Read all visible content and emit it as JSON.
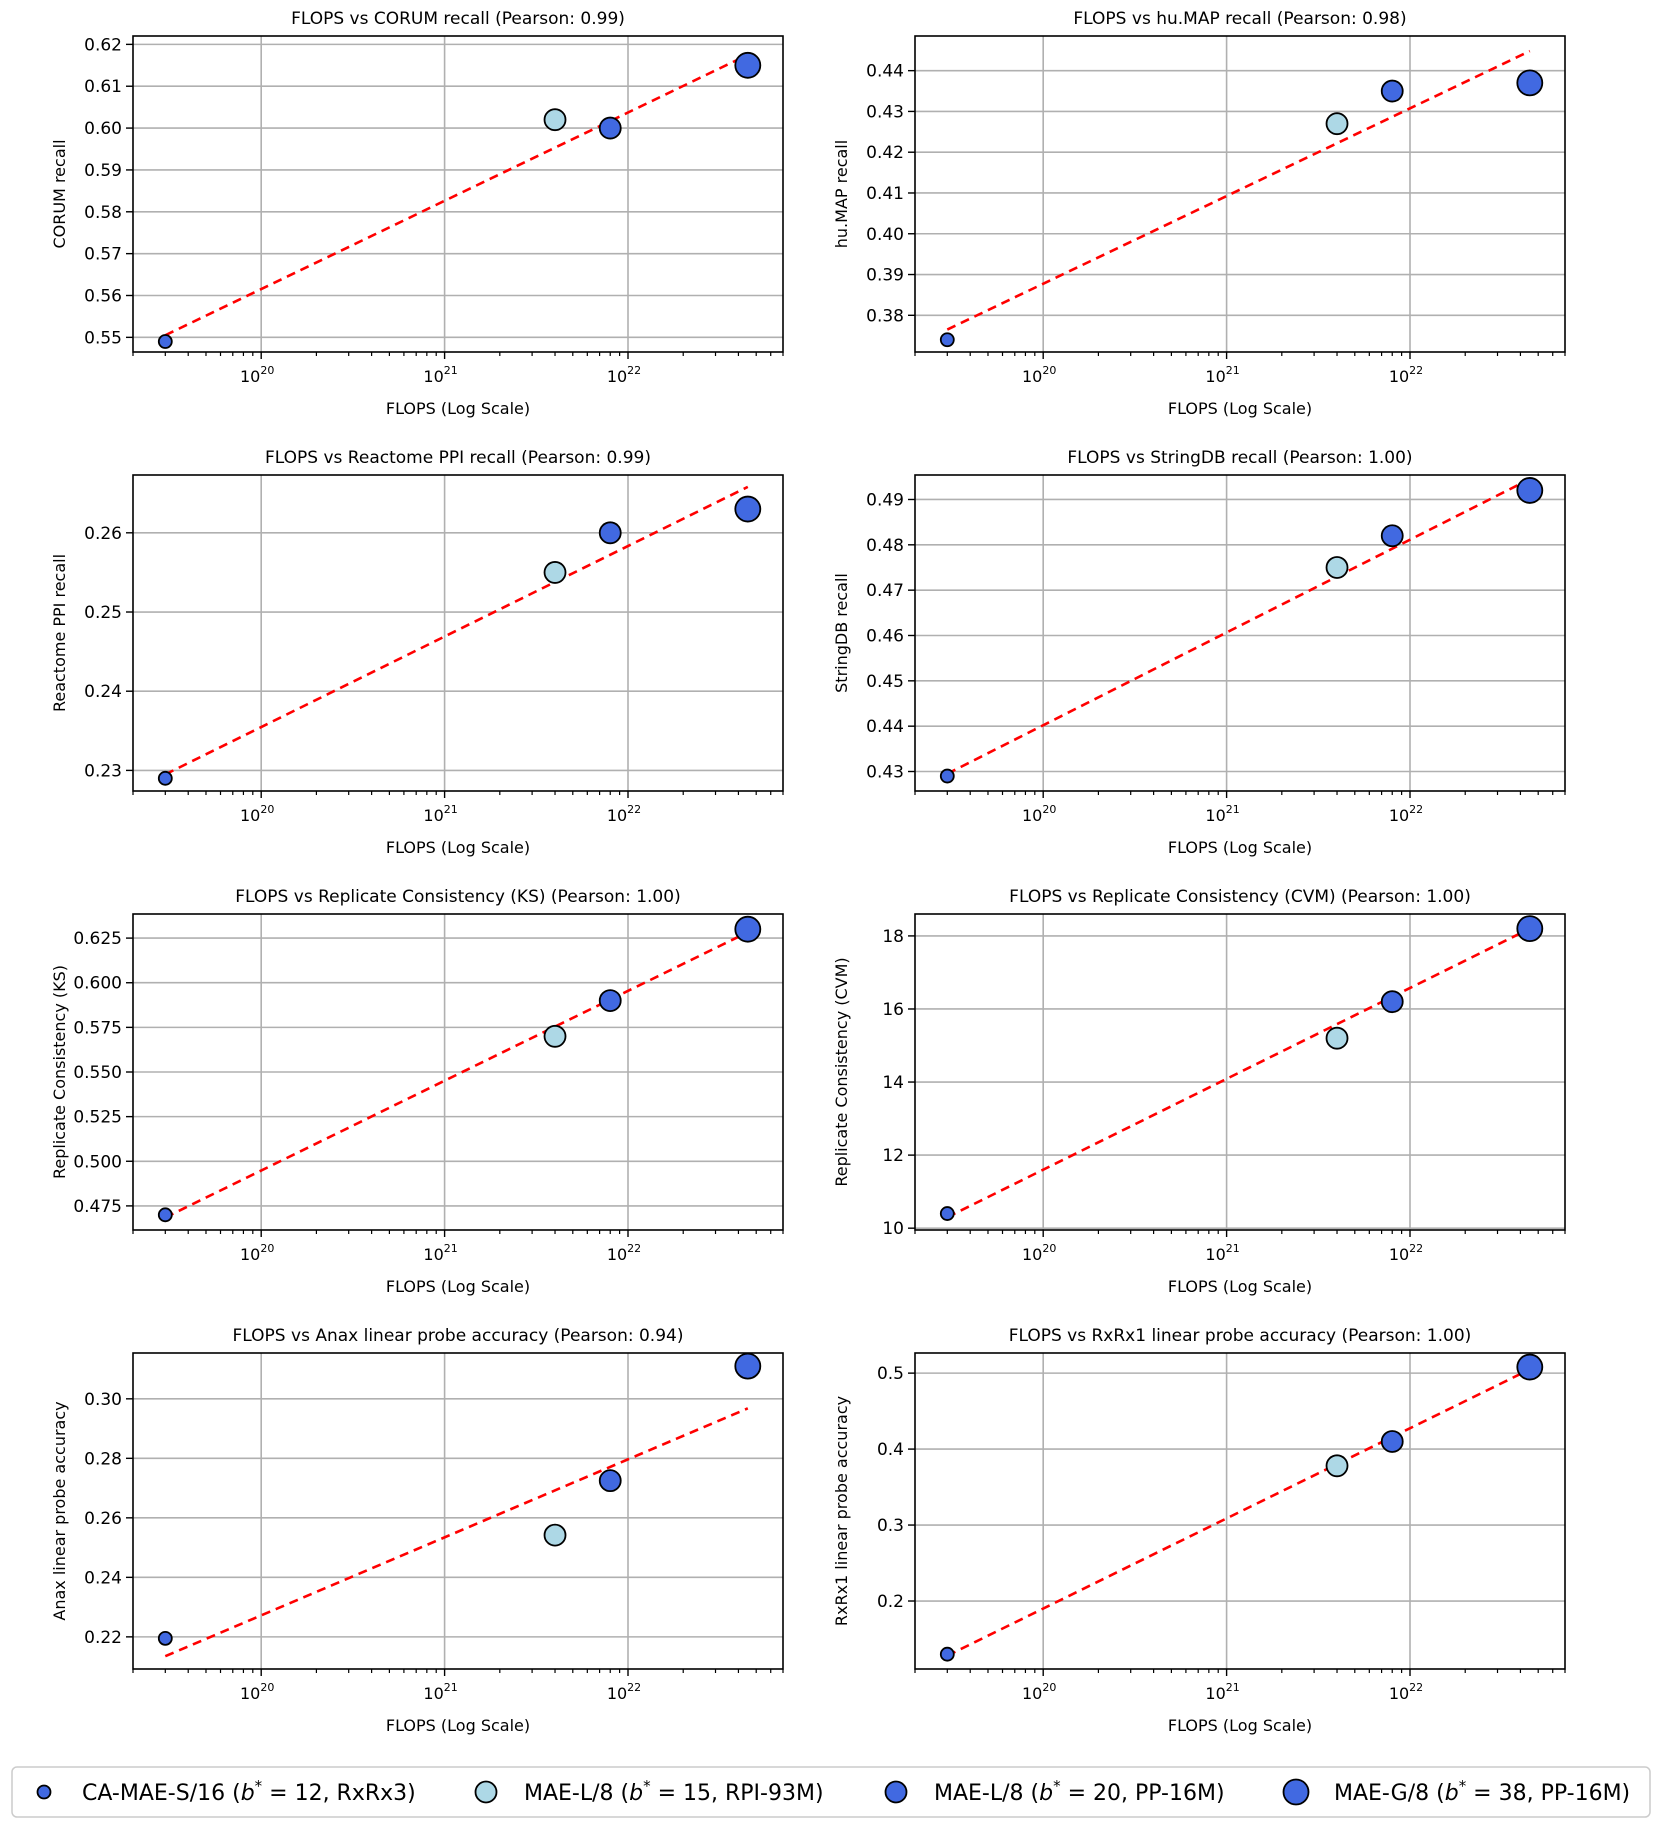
{
  "figure": {
    "xlabel": "FLOPS (Log Scale)",
    "x_tick_base": "10",
    "x_tick_exponents": [
      "20",
      "21",
      "22"
    ],
    "fit_line_color": "#ff0000",
    "point_edge_color": "#000000"
  },
  "models": [
    {
      "name": "CA-MAE-S/16",
      "b_star": 12,
      "dataset": "RxRx3",
      "color": "#4169e1",
      "size": "small"
    },
    {
      "name": "MAE-L/8",
      "b_star": 15,
      "dataset": "RPI-93M",
      "color": "#add8e6",
      "size": "medium"
    },
    {
      "name": "MAE-L/8",
      "b_star": 20,
      "dataset": "PP-16M",
      "color": "#4169e1",
      "size": "medium"
    },
    {
      "name": "MAE-G/8",
      "b_star": 38,
      "dataset": "PP-16M",
      "color": "#4169e1",
      "size": "large"
    }
  ],
  "legend": {
    "items": [
      {
        "prefix": "CA-MAE-S/16 (",
        "math": "b",
        "sup": "*",
        "suffix": " = 12, RxRx3)"
      },
      {
        "prefix": "MAE-L/8 (",
        "math": "b",
        "sup": "*",
        "suffix": " = 15, RPI-93M)"
      },
      {
        "prefix": "MAE-L/8 (",
        "math": "b",
        "sup": "*",
        "suffix": " = 20, PP-16M)"
      },
      {
        "prefix": "MAE-G/8 (",
        "math": "b",
        "sup": "*",
        "suffix": " = 38, PP-16M)"
      }
    ]
  },
  "chart_data": [
    {
      "type": "scatter",
      "title": "FLOPS vs CORUM recall (Pearson: 0.99)",
      "xlabel": "FLOPS (Log Scale)",
      "ylabel": "CORUM recall",
      "x_scale": "log",
      "x": [
        3e+19,
        4e+21,
        8e+21,
        4.5e+22
      ],
      "y": [
        0.549,
        0.602,
        0.6,
        0.615
      ],
      "fit_line": [
        0.5505,
        0.6175
      ],
      "xlim": [
        2e+19,
        7e+22
      ],
      "ylim": [
        0.5465,
        0.622
      ],
      "yticks": [
        0.55,
        0.56,
        0.57,
        0.58,
        0.59,
        0.6,
        0.61,
        0.62
      ],
      "ytick_labels": [
        "0.55",
        "0.56",
        "0.57",
        "0.58",
        "0.59",
        "0.60",
        "0.61",
        "0.62"
      ],
      "grid": true
    },
    {
      "type": "scatter",
      "title": "FLOPS vs hu.MAP recall (Pearson: 0.98)",
      "xlabel": "FLOPS (Log Scale)",
      "ylabel": "hu.MAP recall",
      "x_scale": "log",
      "x": [
        3e+19,
        4e+21,
        8e+21,
        4.5e+22
      ],
      "y": [
        0.374,
        0.427,
        0.435,
        0.437
      ],
      "fit_line": [
        0.3765,
        0.4448
      ],
      "xlim": [
        2e+19,
        7e+22
      ],
      "ylim": [
        0.371,
        0.4485
      ],
      "yticks": [
        0.38,
        0.39,
        0.4,
        0.41,
        0.42,
        0.43,
        0.44
      ],
      "ytick_labels": [
        "0.38",
        "0.39",
        "0.40",
        "0.41",
        "0.42",
        "0.43",
        "0.44"
      ],
      "grid": true
    },
    {
      "type": "scatter",
      "title": "FLOPS vs Reactome PPI recall (Pearson: 0.99)",
      "xlabel": "FLOPS (Log Scale)",
      "ylabel": "Reactome PPI recall",
      "x_scale": "log",
      "x": [
        3e+19,
        4e+21,
        8e+21,
        4.5e+22
      ],
      "y": [
        0.229,
        0.255,
        0.26,
        0.263
      ],
      "fit_line": [
        0.2295,
        0.2658
      ],
      "xlim": [
        2e+19,
        7e+22
      ],
      "ylim": [
        0.2274,
        0.2673
      ],
      "yticks": [
        0.23,
        0.24,
        0.25,
        0.26
      ],
      "ytick_labels": [
        "0.23",
        "0.24",
        "0.25",
        "0.26"
      ],
      "grid": true
    },
    {
      "type": "scatter",
      "title": "FLOPS vs StringDB recall (Pearson: 1.00)",
      "xlabel": "FLOPS (Log Scale)",
      "ylabel": "StringDB recall",
      "x_scale": "log",
      "x": [
        3e+19,
        4e+21,
        8e+21,
        4.5e+22
      ],
      "y": [
        0.429,
        0.475,
        0.482,
        0.492
      ],
      "fit_line": [
        0.4295,
        0.4945
      ],
      "xlim": [
        2e+19,
        7e+22
      ],
      "ylim": [
        0.4257,
        0.4954
      ],
      "yticks": [
        0.43,
        0.44,
        0.45,
        0.46,
        0.47,
        0.48,
        0.49
      ],
      "ytick_labels": [
        "0.43",
        "0.44",
        "0.45",
        "0.46",
        "0.47",
        "0.48",
        "0.49"
      ],
      "grid": true
    },
    {
      "type": "scatter",
      "title": "FLOPS vs Replicate Consistency (KS) (Pearson: 1.00)",
      "xlabel": "FLOPS (Log Scale)",
      "ylabel": "Replicate Consistency (KS)",
      "x_scale": "log",
      "x": [
        3e+19,
        4e+21,
        8e+21,
        4.5e+22
      ],
      "y": [
        0.47,
        0.57,
        0.59,
        0.63
      ],
      "fit_line": [
        0.4685,
        0.6283
      ],
      "xlim": [
        2e+19,
        7e+22
      ],
      "ylim": [
        0.4615,
        0.6385
      ],
      "yticks": [
        0.475,
        0.5,
        0.525,
        0.55,
        0.575,
        0.6,
        0.625
      ],
      "ytick_labels": [
        "0.475",
        "0.500",
        "0.525",
        "0.550",
        "0.575",
        "0.600",
        "0.625"
      ],
      "grid": true
    },
    {
      "type": "scatter",
      "title": "FLOPS vs Replicate Consistency (CVM) (Pearson: 1.00)",
      "xlabel": "FLOPS (Log Scale)",
      "ylabel": "Replicate Consistency (CVM)",
      "x_scale": "log",
      "x": [
        3e+19,
        4e+21,
        8e+21,
        4.5e+22
      ],
      "y": [
        10.4,
        15.2,
        16.2,
        18.2
      ],
      "fit_line": [
        10.3,
        18.2
      ],
      "xlim": [
        2e+19,
        7e+22
      ],
      "ylim": [
        9.95,
        18.6
      ],
      "yticks": [
        10,
        12,
        14,
        16,
        18
      ],
      "ytick_labels": [
        "10",
        "12",
        "14",
        "16",
        "18"
      ],
      "grid": true
    },
    {
      "type": "scatter",
      "title": "FLOPS vs Anax linear probe accuracy (Pearson: 0.94)",
      "xlabel": "FLOPS (Log Scale)",
      "ylabel": "Anax linear probe accuracy",
      "x_scale": "log",
      "x": [
        3e+19,
        4e+21,
        8e+21,
        4.5e+22
      ],
      "y": [
        0.2195,
        0.2542,
        0.2725,
        0.311
      ],
      "fit_line": [
        0.2135,
        0.2968
      ],
      "xlim": [
        2e+19,
        7e+22
      ],
      "ylim": [
        0.2092,
        0.3154
      ],
      "yticks": [
        0.22,
        0.24,
        0.26,
        0.28,
        0.3
      ],
      "ytick_labels": [
        "0.22",
        "0.24",
        "0.26",
        "0.28",
        "0.30"
      ],
      "grid": true
    },
    {
      "type": "scatter",
      "title": "FLOPS vs RxRx1 linear probe accuracy (Pearson: 1.00)",
      "xlabel": "FLOPS (Log Scale)",
      "ylabel": "RxRx1 linear probe accuracy",
      "x_scale": "log",
      "x": [
        3e+19,
        4e+21,
        8e+21,
        4.5e+22
      ],
      "y": [
        0.13,
        0.378,
        0.41,
        0.508
      ],
      "fit_line": [
        0.128,
        0.505
      ],
      "xlim": [
        2e+19,
        7e+22
      ],
      "ylim": [
        0.1105,
        0.5265
      ],
      "yticks": [
        0.2,
        0.3,
        0.4,
        0.5
      ],
      "ytick_labels": [
        "0.2",
        "0.3",
        "0.4",
        "0.5"
      ],
      "grid": true
    }
  ]
}
